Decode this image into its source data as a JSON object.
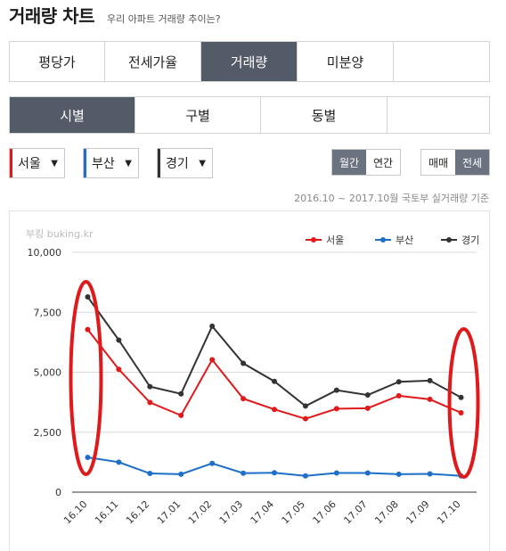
{
  "header": {
    "title": "거래량 차트",
    "subtitle": "우리 아파트 거래량 추이는?"
  },
  "metric_tabs": [
    {
      "label": "평당가",
      "active": false
    },
    {
      "label": "전세가율",
      "active": false
    },
    {
      "label": "거래량",
      "active": true
    },
    {
      "label": "미분양",
      "active": false
    },
    {
      "label": "",
      "active": false
    }
  ],
  "level_tabs": [
    {
      "label": "시별",
      "active": true
    },
    {
      "label": "구별",
      "active": false
    },
    {
      "label": "동별",
      "active": false
    },
    {
      "label": "",
      "active": false
    }
  ],
  "region_selects": [
    {
      "label": "서울",
      "caret": "▼",
      "color": "#e0191b"
    },
    {
      "label": "부산",
      "caret": "▼",
      "color": "#1e6fc8"
    },
    {
      "label": "경기",
      "caret": "▼",
      "color": "#333333"
    }
  ],
  "period_toggle": [
    {
      "label": "월간",
      "active": true
    },
    {
      "label": "연간",
      "active": false
    }
  ],
  "type_toggle": [
    {
      "label": "매매",
      "active": false
    },
    {
      "label": "전세",
      "active": true
    }
  ],
  "source_note": "2016.10 ~ 2017.10월 국토부 실거래량 기준",
  "watermark": "부킹 buking.kr",
  "annotation": {
    "color": "#e0191b",
    "highlighted_categories": [
      "16.10",
      "17.10"
    ]
  },
  "chart_data": {
    "type": "line",
    "categories": [
      "16.10",
      "16.11",
      "16.12",
      "17.01",
      "17.02",
      "17.03",
      "17.04",
      "17.05",
      "17.06",
      "17.07",
      "17.08",
      "17.09",
      "17.10"
    ],
    "series": [
      {
        "name": "서울",
        "color": "#e0191b",
        "values": [
          6780,
          5120,
          3740,
          3200,
          5520,
          3900,
          3450,
          3060,
          3480,
          3500,
          4020,
          3870,
          3310
        ]
      },
      {
        "name": "부산",
        "color": "#1e6fc8",
        "values": [
          1450,
          1250,
          780,
          750,
          1200,
          790,
          810,
          680,
          800,
          800,
          750,
          760,
          680
        ]
      },
      {
        "name": "경기",
        "color": "#333333",
        "values": [
          8140,
          6340,
          4400,
          4100,
          6920,
          5370,
          4620,
          3590,
          4250,
          4050,
          4600,
          4650,
          3950
        ]
      }
    ],
    "ylim": [
      0,
      10000
    ],
    "yticks": [
      0,
      2500,
      5000,
      7500,
      10000
    ],
    "ytick_labels": [
      "0",
      "2,500",
      "5,000",
      "7,500",
      "10,000"
    ],
    "grid": true,
    "legend": "top-right",
    "title": "",
    "xlabel": "",
    "ylabel": ""
  }
}
